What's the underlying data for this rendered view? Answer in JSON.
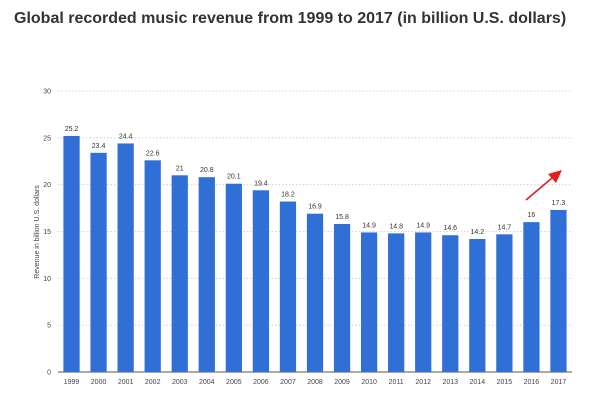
{
  "chart_data": {
    "type": "bar",
    "title": "Global recorded music revenue from 1999 to 2017 (in billion U.S. dollars)",
    "xlabel": "",
    "ylabel": "Revenue in billion U.S. dollars",
    "ylim": [
      0,
      30
    ],
    "yticks": [
      0,
      5,
      10,
      15,
      20,
      25,
      30
    ],
    "grid": "horizontal dotted",
    "categories": [
      "1999",
      "2000",
      "2001",
      "2002",
      "2003",
      "2004",
      "2005",
      "2006",
      "2007",
      "2008",
      "2009",
      "2010",
      "2011",
      "2012",
      "2013",
      "2014",
      "2015",
      "2016",
      "2017"
    ],
    "values": [
      25.2,
      23.4,
      24.4,
      22.6,
      21,
      20.8,
      20.1,
      19.4,
      18.2,
      16.9,
      15.8,
      14.9,
      14.8,
      14.9,
      14.6,
      14.2,
      14.7,
      16,
      17.3
    ],
    "value_labels": [
      "25.2",
      "23.4",
      "24.4",
      "22.6",
      "21",
      "20.8",
      "20.1",
      "19.4",
      "18.2",
      "16.9",
      "15.8",
      "14.9",
      "14.8",
      "14.9",
      "14.6",
      "14.2",
      "14.7",
      "16",
      "17.3"
    ],
    "bar_color": "#2f6fd6",
    "annotation": {
      "type": "arrow",
      "color": "#e02020",
      "meaning": "upward trend"
    }
  }
}
